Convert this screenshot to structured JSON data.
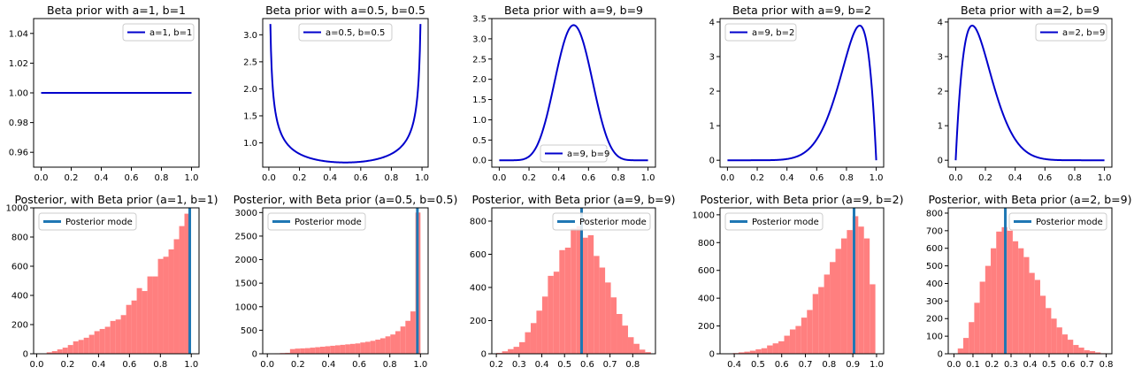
{
  "chart_data": [
    {
      "type": "line",
      "title": "Beta prior with a=1, b=1",
      "a": 1,
      "b": 1,
      "x_range": [
        0.0,
        1.0
      ],
      "xlim": [
        -0.05,
        1.05
      ],
      "ylim": [
        0.95,
        1.05
      ],
      "xticks": [
        0.0,
        0.2,
        0.4,
        0.6,
        0.8,
        1.0
      ],
      "yticks": [
        0.96,
        0.98,
        1.0,
        1.02,
        1.04
      ],
      "xtick_labels": [
        "0.0",
        "0.2",
        "0.4",
        "0.6",
        "0.8",
        "1.0"
      ],
      "ytick_labels": [
        "0.96",
        "0.98",
        "1.00",
        "1.02",
        "1.04"
      ],
      "color": "#0000cc",
      "series": [
        {
          "name": "a=1, b=1",
          "curve": "beta_pdf",
          "a": 1,
          "b": 1
        }
      ],
      "legend_position": "top-right"
    },
    {
      "type": "line",
      "title": "Beta prior with a=0.5, b=0.5",
      "a": 0.5,
      "b": 0.5,
      "x_range": [
        0.01,
        0.99
      ],
      "xlim": [
        -0.04,
        1.04
      ],
      "ylim": [
        0.55,
        3.3
      ],
      "xticks": [
        0.0,
        0.2,
        0.4,
        0.6,
        0.8,
        1.0
      ],
      "yticks": [
        1.0,
        1.5,
        2.0,
        2.5,
        3.0
      ],
      "xtick_labels": [
        "0.0",
        "0.2",
        "0.4",
        "0.6",
        "0.8",
        "1.0"
      ],
      "ytick_labels": [
        "1.0",
        "1.5",
        "2.0",
        "2.5",
        "3.0"
      ],
      "color": "#0000cc",
      "series": [
        {
          "name": "a=0.5, b=0.5",
          "curve": "beta_pdf",
          "a": 0.5,
          "b": 0.5
        }
      ],
      "legend_position": "upper-center"
    },
    {
      "type": "line",
      "title": "Beta prior with a=9, b=9",
      "a": 9,
      "b": 9,
      "x_range": [
        0.0,
        1.0
      ],
      "xlim": [
        -0.05,
        1.05
      ],
      "ylim": [
        -0.17,
        3.5
      ],
      "xticks": [
        0.0,
        0.2,
        0.4,
        0.6,
        0.8,
        1.0
      ],
      "yticks": [
        0.0,
        0.5,
        1.0,
        1.5,
        2.0,
        2.5,
        3.0,
        3.5
      ],
      "xtick_labels": [
        "0.0",
        "0.2",
        "0.4",
        "0.6",
        "0.8",
        "1.0"
      ],
      "ytick_labels": [
        "0.0",
        "0.5",
        "1.0",
        "1.5",
        "2.0",
        "2.5",
        "3.0",
        "3.5"
      ],
      "color": "#0000cc",
      "series": [
        {
          "name": "a=9, b=9",
          "curve": "beta_pdf",
          "a": 9,
          "b": 9
        }
      ],
      "legend_position": "lower-center"
    },
    {
      "type": "line",
      "title": "Beta prior with a=9, b=2",
      "a": 9,
      "b": 2,
      "x_range": [
        0.0,
        1.0
      ],
      "xlim": [
        -0.05,
        1.05
      ],
      "ylim": [
        -0.2,
        4.1
      ],
      "xticks": [
        0.0,
        0.2,
        0.4,
        0.6,
        0.8,
        1.0
      ],
      "yticks": [
        0,
        1,
        2,
        3,
        4
      ],
      "xtick_labels": [
        "0.0",
        "0.2",
        "0.4",
        "0.6",
        "0.8",
        "1.0"
      ],
      "ytick_labels": [
        "0",
        "1",
        "2",
        "3",
        "4"
      ],
      "color": "#0000cc",
      "series": [
        {
          "name": "a=9, b=2",
          "curve": "beta_pdf",
          "a": 9,
          "b": 2
        }
      ],
      "legend_position": "top-left"
    },
    {
      "type": "line",
      "title": "Beta prior with a=2, b=9",
      "a": 2,
      "b": 9,
      "x_range": [
        0.0,
        1.0
      ],
      "xlim": [
        -0.05,
        1.05
      ],
      "ylim": [
        -0.2,
        4.1
      ],
      "xticks": [
        0.0,
        0.2,
        0.4,
        0.6,
        0.8,
        1.0
      ],
      "yticks": [
        0,
        1,
        2,
        3,
        4
      ],
      "xtick_labels": [
        "0.0",
        "0.2",
        "0.4",
        "0.6",
        "0.8",
        "1.0"
      ],
      "ytick_labels": [
        "0",
        "1",
        "2",
        "3",
        "4"
      ],
      "color": "#0000cc",
      "series": [
        {
          "name": "a=2, b=9",
          "curve": "beta_pdf",
          "a": 2,
          "b": 9
        }
      ],
      "legend_position": "top-right"
    },
    {
      "type": "bar",
      "subtype": "histogram",
      "title": "Posterior, with Beta prior (a=1, b=1)",
      "xlim": [
        -0.02,
        1.05
      ],
      "ylim": [
        0,
        1000
      ],
      "xticks": [
        0.0,
        0.2,
        0.4,
        0.6,
        0.8,
        1.0
      ],
      "yticks": [
        0,
        200,
        400,
        600,
        800,
        1000
      ],
      "xtick_labels": [
        "0.0",
        "0.2",
        "0.4",
        "0.6",
        "0.8",
        "1.0"
      ],
      "ytick_labels": [
        "0",
        "200",
        "400",
        "600",
        "800",
        "1000"
      ],
      "bin_range": [
        0.03,
        0.99
      ],
      "counts": [
        3,
        10,
        18,
        30,
        42,
        60,
        85,
        95,
        110,
        130,
        155,
        170,
        185,
        225,
        235,
        265,
        335,
        365,
        450,
        430,
        530,
        530,
        650,
        665,
        715,
        785,
        875,
        960
      ],
      "bar_color": "#ff7f7f",
      "mode_line": {
        "label": "Posterior mode",
        "x": 0.99,
        "color": "#1f77b4"
      },
      "legend_position": "top-left"
    },
    {
      "type": "bar",
      "subtype": "histogram",
      "title": "Posterior, with Beta prior (a=0.5, b=0.5)",
      "xlim": [
        -0.03,
        1.05
      ],
      "ylim": [
        0,
        3100
      ],
      "xticks": [
        0.0,
        0.2,
        0.4,
        0.6,
        0.8,
        1.0
      ],
      "yticks": [
        0,
        500,
        1000,
        1500,
        2000,
        2500,
        3000
      ],
      "xtick_labels": [
        "0.0",
        "0.2",
        "0.4",
        "0.6",
        "0.8",
        "1.0"
      ],
      "ytick_labels": [
        "0",
        "500",
        "1000",
        "1500",
        "2000",
        "2500",
        "3000"
      ],
      "bin_range": [
        0.05,
        1.0
      ],
      "counts": [
        10,
        15,
        20,
        100,
        110,
        115,
        120,
        130,
        140,
        150,
        160,
        170,
        180,
        190,
        200,
        210,
        220,
        240,
        255,
        275,
        300,
        330,
        370,
        410,
        480,
        580,
        700,
        900,
        3000
      ],
      "bar_color": "#ff7f7f",
      "mode_line": {
        "label": "Posterior mode",
        "x": 0.98,
        "color": "#1f77b4"
      },
      "legend_position": "top-left"
    },
    {
      "type": "bar",
      "subtype": "histogram",
      "title": "Posterior, with Beta prior (a=9, b=9)",
      "xlim": [
        0.18,
        0.9
      ],
      "ylim": [
        0,
        880
      ],
      "xticks": [
        0.2,
        0.3,
        0.4,
        0.5,
        0.6,
        0.7,
        0.8
      ],
      "yticks": [
        0,
        200,
        400,
        600,
        800
      ],
      "xtick_labels": [
        "0.2",
        "0.3",
        "0.4",
        "0.5",
        "0.6",
        "0.7",
        "0.8"
      ],
      "ytick_labels": [
        "0",
        "200",
        "400",
        "600",
        "800"
      ],
      "bin_range": [
        0.2,
        0.88
      ],
      "counts": [
        5,
        15,
        28,
        42,
        70,
        130,
        185,
        260,
        345,
        470,
        495,
        625,
        640,
        755,
        770,
        700,
        715,
        590,
        520,
        430,
        340,
        240,
        170,
        100,
        60,
        25,
        10
      ],
      "bar_color": "#ff7f7f",
      "mode_line": {
        "label": "Posterior mode",
        "x": 0.575,
        "color": "#1f77b4"
      },
      "legend_position": "top-right"
    },
    {
      "type": "bar",
      "subtype": "histogram",
      "title": "Posterior, with Beta prior (a=9, b=2)",
      "xlim": [
        0.34,
        1.03
      ],
      "ylim": [
        0,
        1050
      ],
      "xticks": [
        0.4,
        0.5,
        0.6,
        0.7,
        0.8,
        0.9,
        1.0
      ],
      "yticks": [
        0,
        200,
        400,
        600,
        800,
        1000
      ],
      "xtick_labels": [
        "0.4",
        "0.5",
        "0.6",
        "0.7",
        "0.8",
        "0.9",
        "1.0"
      ],
      "ytick_labels": [
        "0",
        "200",
        "400",
        "600",
        "800",
        "1000"
      ],
      "bin_range": [
        0.37,
        0.995
      ],
      "counts": [
        3,
        5,
        10,
        15,
        22,
        32,
        40,
        60,
        75,
        90,
        130,
        175,
        200,
        260,
        315,
        430,
        480,
        570,
        660,
        755,
        830,
        890,
        990,
        915,
        830,
        500
      ],
      "bar_color": "#ff7f7f",
      "mode_line": {
        "label": "Posterior mode",
        "x": 0.905,
        "color": "#1f77b4"
      },
      "legend_position": "top-left"
    },
    {
      "type": "bar",
      "subtype": "histogram",
      "title": "Posterior, with Beta prior (a=2, b=9)",
      "xlim": [
        -0.03,
        0.83
      ],
      "ylim": [
        0,
        830
      ],
      "xticks": [
        0.0,
        0.1,
        0.2,
        0.3,
        0.4,
        0.5,
        0.6,
        0.7,
        0.8
      ],
      "yticks": [
        0,
        100,
        200,
        300,
        400,
        500,
        600,
        700,
        800
      ],
      "xtick_labels": [
        "0.0",
        "0.1",
        "0.2",
        "0.3",
        "0.4",
        "0.5",
        "0.6",
        "0.7",
        "0.8"
      ],
      "ytick_labels": [
        "0",
        "100",
        "200",
        "300",
        "400",
        "500",
        "600",
        "700",
        "800"
      ],
      "bin_range": [
        0.02,
        0.8
      ],
      "counts": [
        30,
        90,
        180,
        290,
        410,
        500,
        600,
        695,
        720,
        700,
        640,
        600,
        550,
        460,
        420,
        330,
        260,
        200,
        150,
        110,
        80,
        50,
        35,
        20,
        15,
        8,
        3
      ],
      "bar_color": "#ff7f7f",
      "mode_line": {
        "label": "Posterior mode",
        "x": 0.27,
        "color": "#1f77b4"
      },
      "legend_position": "top-right"
    }
  ]
}
